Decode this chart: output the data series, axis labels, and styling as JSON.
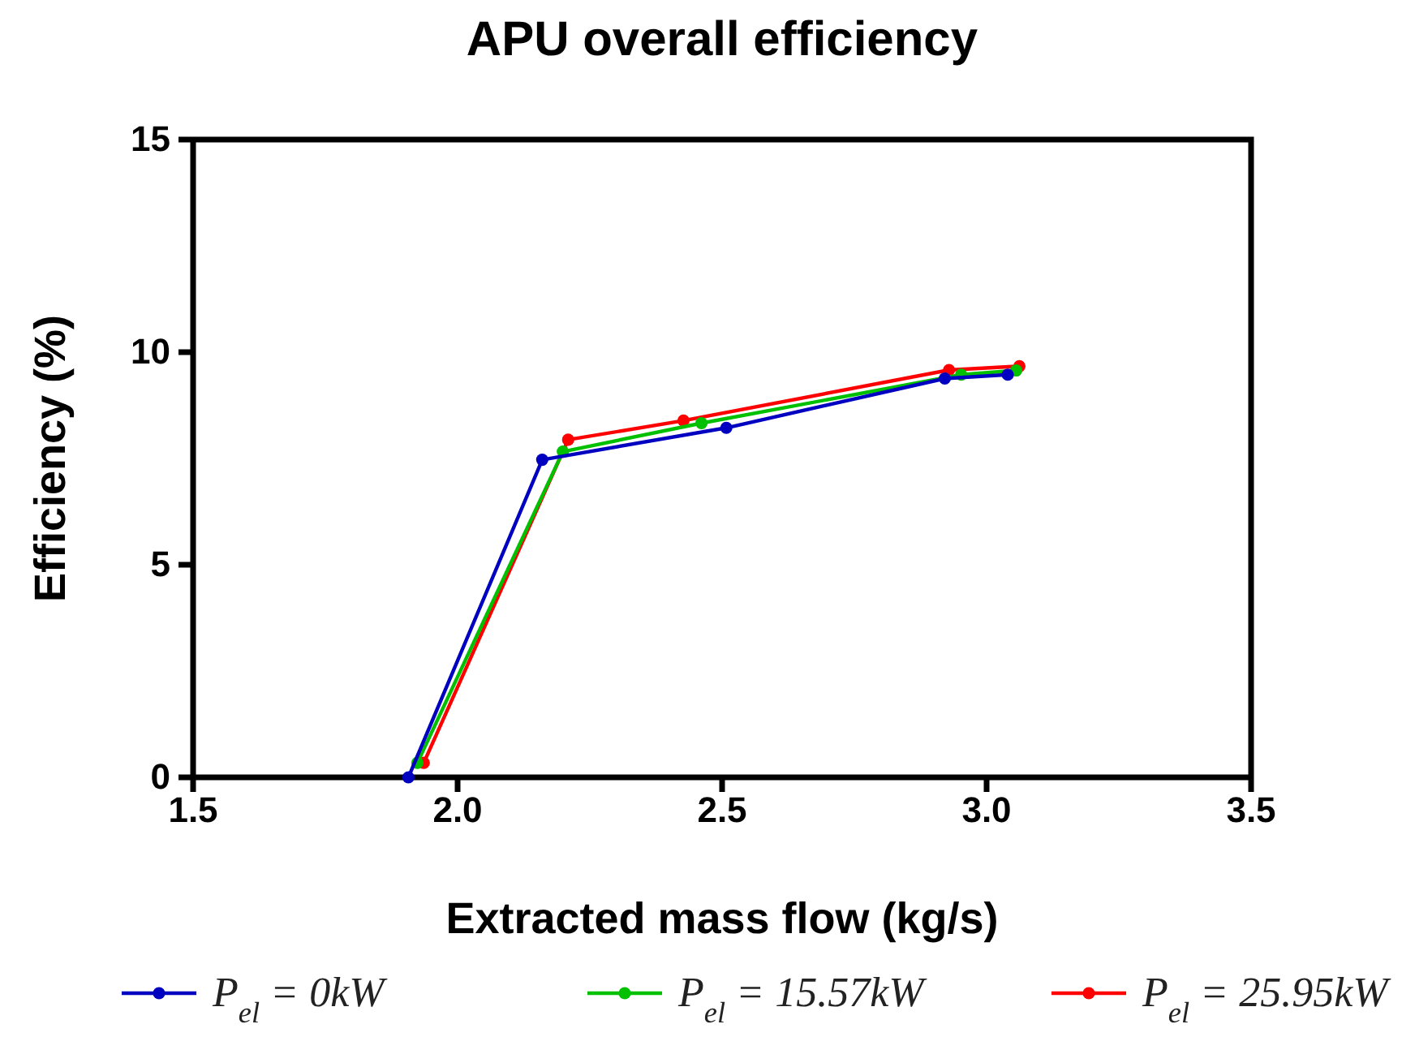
{
  "chart_data": {
    "type": "line",
    "title": "APU overall efficiency",
    "xlabel": "Extracted mass flow (kg/s)",
    "ylabel": "Efficiency (%)",
    "xlim": [
      1.5,
      3.5
    ],
    "xticks": [
      {
        "value": 1.5,
        "label": "1.5"
      },
      {
        "value": 2,
        "label": "2.0"
      },
      {
        "value": 2.5,
        "label": "2.5"
      },
      {
        "value": 3,
        "label": "3.0"
      },
      {
        "value": 3.5,
        "label": "3.5"
      }
    ],
    "ylim": [
      0,
      15
    ],
    "yticks": [
      0,
      5,
      10,
      15
    ],
    "marker": "circle",
    "legend": "bottom",
    "grid": false,
    "series": [
      {
        "name": "P$_{el}$ = 0kW",
        "color": "#0000c0",
        "x": [
          1.907,
          2.16,
          2.508,
          2.921,
          3.04
        ],
        "values": [
          0,
          7.47,
          8.22,
          9.38,
          9.47
        ]
      },
      {
        "name": "P$_{el}$ = 15.57kW",
        "color": "#00c000",
        "x": [
          1.924,
          2.199,
          2.461,
          2.952,
          3.056
        ],
        "values": [
          0.34,
          7.66,
          8.33,
          9.47,
          9.57
        ]
      },
      {
        "name": "P$_{el}$ = 25.95kW",
        "color": "#ff0000",
        "x": [
          1.936,
          2.209,
          2.427,
          2.929,
          3.062
        ],
        "values": [
          0.34,
          7.94,
          8.39,
          9.58,
          9.67
        ]
      }
    ]
  }
}
